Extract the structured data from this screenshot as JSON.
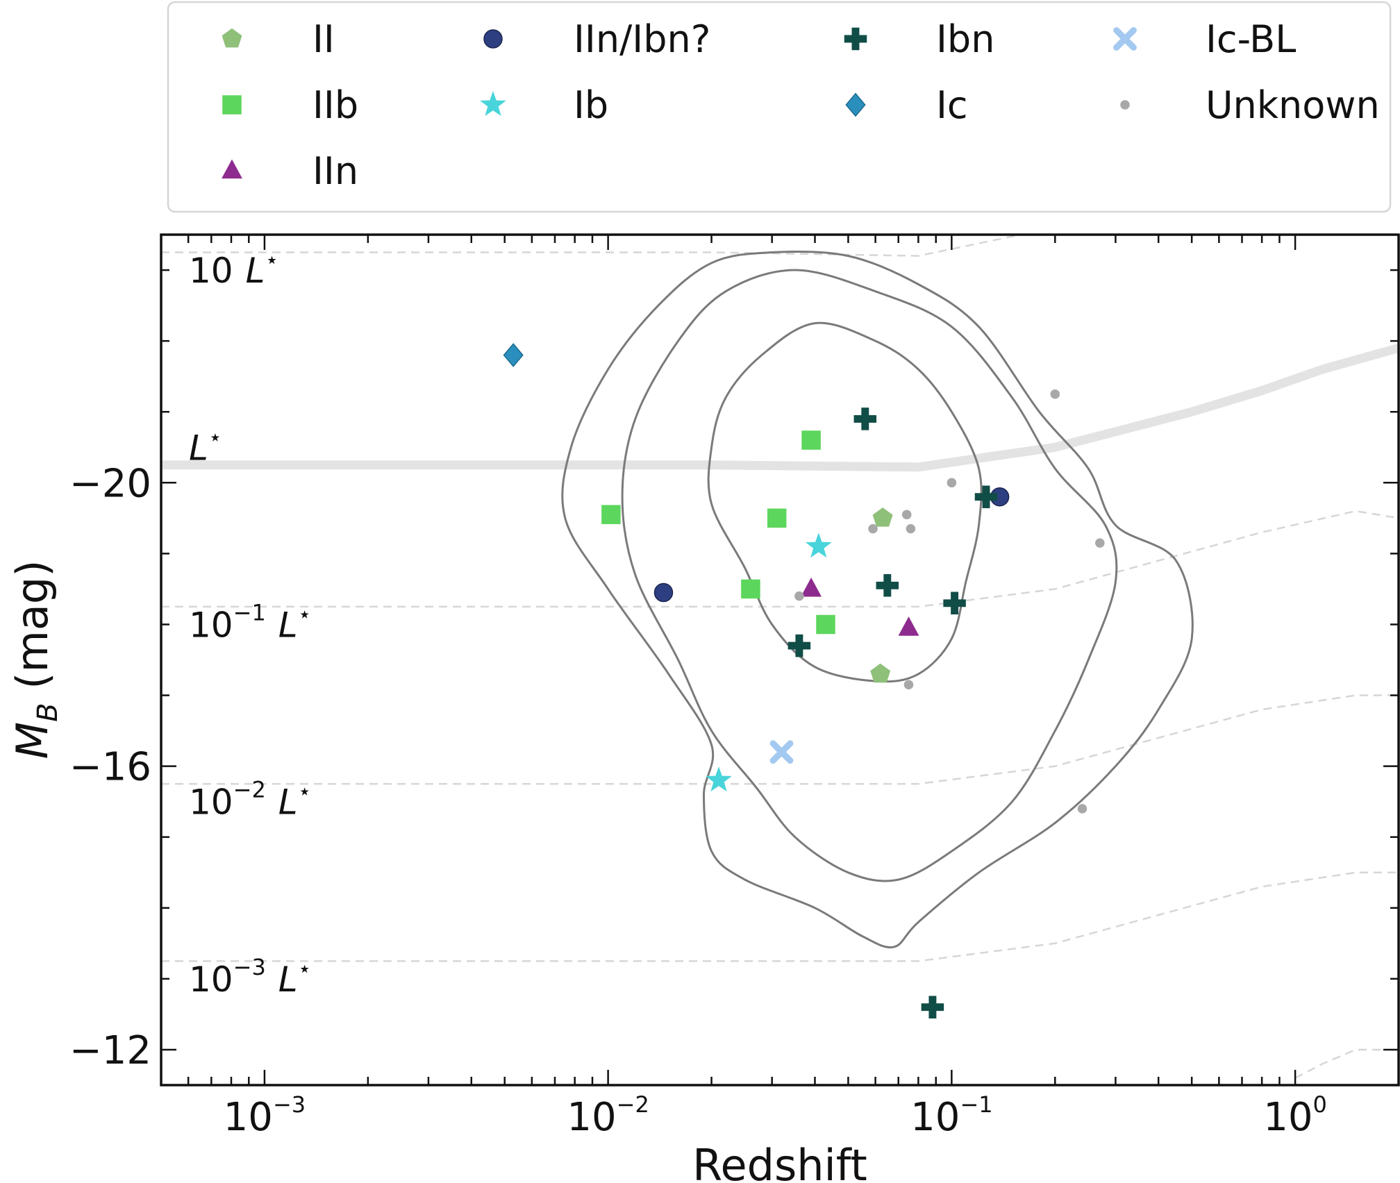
{
  "chart_data": {
    "type": "scatter",
    "xlabel": "Redshift",
    "ylabel": "M_B (mag)",
    "ylabel_main": "M",
    "ylabel_sub": "B",
    "ylabel_unit": " (mag)",
    "x_scale": "log",
    "xlim": [
      0.0005,
      2.0
    ],
    "ylim": [
      -11.5,
      -23.5
    ],
    "x_ticks": [
      {
        "value": 0.001,
        "base": "10",
        "exp": "−3"
      },
      {
        "value": 0.01,
        "base": "10",
        "exp": "−2"
      },
      {
        "value": 0.1,
        "base": "10",
        "exp": "−1"
      },
      {
        "value": 1.0,
        "base": "10",
        "exp": "0"
      }
    ],
    "y_ticks": [
      {
        "value": -20,
        "label": "−20"
      },
      {
        "value": -16,
        "label": "−16"
      },
      {
        "value": -12,
        "label": "−12"
      }
    ],
    "grid": false,
    "legend_position": "top-outside",
    "luminosity_labels": [
      {
        "text": "10 L",
        "star": "⋆",
        "exp": "",
        "mag": -23.0
      },
      {
        "text": "L",
        "star": "⋆",
        "exp": "",
        "mag": -20.5
      },
      {
        "text": "10 L",
        "star": "⋆",
        "exp": "−1",
        "mag": -18.0
      },
      {
        "text": "10 L",
        "star": "⋆",
        "exp": "−2",
        "mag": -15.5
      },
      {
        "text": "10 L",
        "star": "⋆",
        "exp": "−3",
        "mag": -13.0
      }
    ],
    "luminosity_curves": [
      {
        "style": "dashed",
        "points": [
          [
            0.0005,
            -23.25
          ],
          [
            0.02,
            -23.25
          ],
          [
            0.08,
            -23.2
          ],
          [
            0.2,
            -23.6
          ],
          [
            0.5,
            -24.0
          ],
          [
            0.8,
            -24.3
          ]
        ]
      },
      {
        "style": "band",
        "points": [
          [
            0.0005,
            -20.25
          ],
          [
            0.02,
            -20.25
          ],
          [
            0.08,
            -20.22
          ],
          [
            0.2,
            -20.5
          ],
          [
            0.5,
            -21.0
          ],
          [
            0.8,
            -21.3
          ],
          [
            1.2,
            -21.6
          ],
          [
            2.0,
            -21.9
          ]
        ]
      },
      {
        "style": "dashed",
        "points": [
          [
            0.0005,
            -18.25
          ],
          [
            0.02,
            -18.25
          ],
          [
            0.08,
            -18.25
          ],
          [
            0.2,
            -18.5
          ],
          [
            0.4,
            -18.9
          ],
          [
            0.8,
            -19.3
          ],
          [
            1.5,
            -19.6
          ],
          [
            2.0,
            -19.5
          ]
        ]
      },
      {
        "style": "dashed",
        "points": [
          [
            0.0005,
            -15.75
          ],
          [
            0.02,
            -15.75
          ],
          [
            0.08,
            -15.75
          ],
          [
            0.2,
            -16.0
          ],
          [
            0.4,
            -16.4
          ],
          [
            0.8,
            -16.8
          ],
          [
            1.5,
            -17.0
          ],
          [
            2.0,
            -17.0
          ]
        ]
      },
      {
        "style": "dashed",
        "points": [
          [
            0.0005,
            -13.25
          ],
          [
            0.02,
            -13.25
          ],
          [
            0.08,
            -13.25
          ],
          [
            0.2,
            -13.5
          ],
          [
            0.4,
            -13.9
          ],
          [
            0.8,
            -14.3
          ],
          [
            1.5,
            -14.5
          ],
          [
            2.0,
            -14.5
          ]
        ]
      },
      {
        "style": "dashed",
        "points": [
          [
            1.0,
            -11.6
          ],
          [
            1.2,
            -11.8
          ],
          [
            1.5,
            -12.0
          ],
          [
            2.0,
            -12.0
          ]
        ]
      }
    ],
    "contours": [
      {
        "level": "inner",
        "points": [
          [
            0.04,
            -22.25
          ],
          [
            0.06,
            -22.0
          ],
          [
            0.08,
            -21.6
          ],
          [
            0.1,
            -21.0
          ],
          [
            0.12,
            -20.2
          ],
          [
            0.12,
            -19.4
          ],
          [
            0.11,
            -18.6
          ],
          [
            0.1,
            -17.8
          ],
          [
            0.08,
            -17.3
          ],
          [
            0.06,
            -17.2
          ],
          [
            0.04,
            -17.4
          ],
          [
            0.03,
            -18.0
          ],
          [
            0.025,
            -18.8
          ],
          [
            0.02,
            -19.7
          ],
          [
            0.02,
            -20.5
          ],
          [
            0.022,
            -21.2
          ],
          [
            0.028,
            -21.8
          ]
        ]
      },
      {
        "level": "middle",
        "points": [
          [
            0.035,
            -23.0
          ],
          [
            0.06,
            -22.7
          ],
          [
            0.1,
            -22.2
          ],
          [
            0.15,
            -21.2
          ],
          [
            0.2,
            -20.2
          ],
          [
            0.28,
            -19.4
          ],
          [
            0.3,
            -18.6
          ],
          [
            0.25,
            -17.5
          ],
          [
            0.2,
            -16.5
          ],
          [
            0.15,
            -15.5
          ],
          [
            0.1,
            -14.8
          ],
          [
            0.07,
            -14.4
          ],
          [
            0.05,
            -14.5
          ],
          [
            0.035,
            -15.0
          ],
          [
            0.027,
            -15.7
          ],
          [
            0.02,
            -16.5
          ],
          [
            0.016,
            -17.5
          ],
          [
            0.012,
            -18.7
          ],
          [
            0.011,
            -19.8
          ],
          [
            0.012,
            -20.9
          ],
          [
            0.016,
            -22.0
          ],
          [
            0.022,
            -22.7
          ]
        ]
      },
      {
        "level": "outer",
        "points": [
          [
            0.03,
            -23.25
          ],
          [
            0.05,
            -23.2
          ],
          [
            0.08,
            -22.8
          ],
          [
            0.12,
            -22.2
          ],
          [
            0.18,
            -21.0
          ],
          [
            0.25,
            -20.2
          ],
          [
            0.3,
            -19.4
          ],
          [
            0.45,
            -18.9
          ],
          [
            0.5,
            -17.8
          ],
          [
            0.4,
            -16.8
          ],
          [
            0.3,
            -16.0
          ],
          [
            0.2,
            -15.2
          ],
          [
            0.12,
            -14.5
          ],
          [
            0.08,
            -13.8
          ],
          [
            0.068,
            -13.45
          ],
          [
            0.055,
            -13.6
          ],
          [
            0.04,
            -14.0
          ],
          [
            0.025,
            -14.4
          ],
          [
            0.02,
            -14.8
          ],
          [
            0.019,
            -15.6
          ],
          [
            0.02,
            -16.3
          ],
          [
            0.015,
            -17.3
          ],
          [
            0.01,
            -18.5
          ],
          [
            0.0075,
            -19.5
          ],
          [
            0.0078,
            -20.5
          ],
          [
            0.01,
            -21.6
          ],
          [
            0.014,
            -22.5
          ],
          [
            0.02,
            -23.1
          ]
        ]
      }
    ],
    "series": [
      {
        "name": "II",
        "marker": "pentagon",
        "color": "#8fc07a",
        "points": [
          [
            0.063,
            -19.5
          ],
          [
            0.062,
            -17.3
          ]
        ]
      },
      {
        "name": "IIb",
        "marker": "square",
        "color": "#5cd65c",
        "points": [
          [
            0.039,
            -20.6
          ],
          [
            0.031,
            -19.5
          ],
          [
            0.0102,
            -19.55
          ],
          [
            0.026,
            -18.5
          ],
          [
            0.043,
            -18.0
          ]
        ]
      },
      {
        "name": "IIn",
        "marker": "triangle",
        "color": "#8e2b8e",
        "points": [
          [
            0.039,
            -18.5
          ],
          [
            0.075,
            -17.95
          ]
        ]
      },
      {
        "name": "IIn/Ibn?",
        "marker": "circle",
        "color": "#2d3f80",
        "points": [
          [
            0.0145,
            -18.45
          ],
          [
            0.138,
            -19.8
          ]
        ]
      },
      {
        "name": "Ib",
        "marker": "star",
        "color": "#48d4da",
        "points": [
          [
            0.041,
            -19.1
          ],
          [
            0.021,
            -15.8
          ]
        ]
      },
      {
        "name": "Ibn",
        "marker": "plus",
        "color": "#114d47",
        "points": [
          [
            0.056,
            -20.9
          ],
          [
            0.065,
            -18.55
          ],
          [
            0.036,
            -17.7
          ],
          [
            0.102,
            -18.3
          ],
          [
            0.126,
            -19.8
          ],
          [
            0.088,
            -12.6
          ]
        ]
      },
      {
        "name": "Ic",
        "marker": "diamond",
        "color": "#2a8fbd",
        "points": [
          [
            0.0053,
            -21.8
          ]
        ]
      },
      {
        "name": "Ic-BL",
        "marker": "x",
        "color": "#a3c9f0",
        "points": [
          [
            0.032,
            -16.2
          ]
        ]
      },
      {
        "name": "Unknown",
        "marker": "dot",
        "color": "#a8a8a8",
        "points": [
          [
            0.2,
            -21.25
          ],
          [
            0.1,
            -20.0
          ],
          [
            0.059,
            -19.35
          ],
          [
            0.076,
            -19.35
          ],
          [
            0.074,
            -19.55
          ],
          [
            0.27,
            -19.15
          ],
          [
            0.036,
            -18.4
          ],
          [
            0.075,
            -17.15
          ],
          [
            0.24,
            -15.4
          ]
        ]
      }
    ]
  }
}
